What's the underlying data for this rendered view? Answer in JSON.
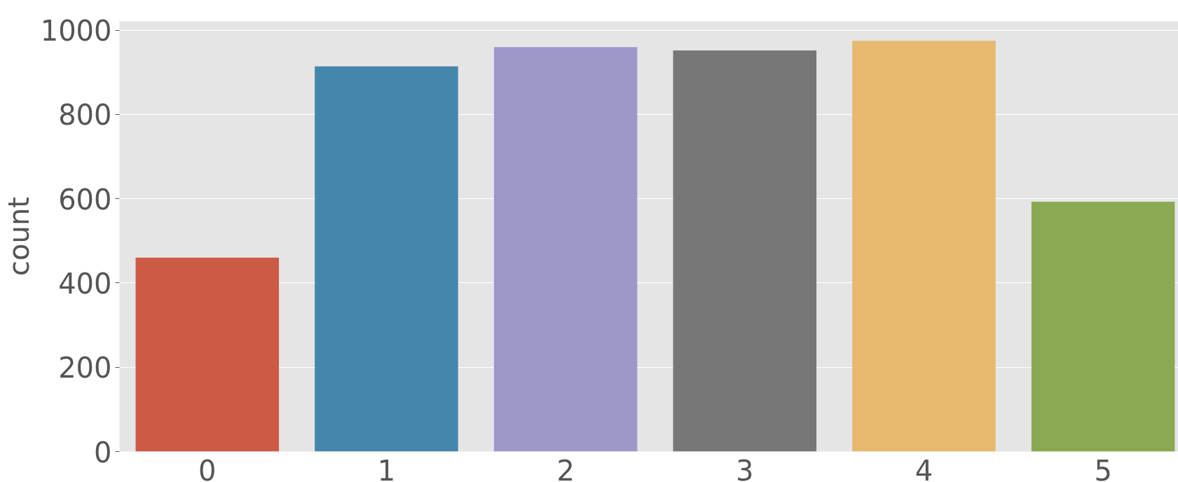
{
  "chart_data": {
    "type": "bar",
    "ylabel": "count",
    "categories": [
      "0",
      "1",
      "2",
      "3",
      "4",
      "5"
    ],
    "values": [
      460,
      914,
      960,
      952,
      975,
      593
    ],
    "colors": [
      "#cc5a45",
      "#4586ad",
      "#9e97ca",
      "#777777",
      "#e6b96f",
      "#8aa952"
    ],
    "ylim": [
      0,
      1021
    ],
    "yticks": [
      0,
      200,
      400,
      600,
      800,
      1000
    ],
    "grid": "y"
  }
}
